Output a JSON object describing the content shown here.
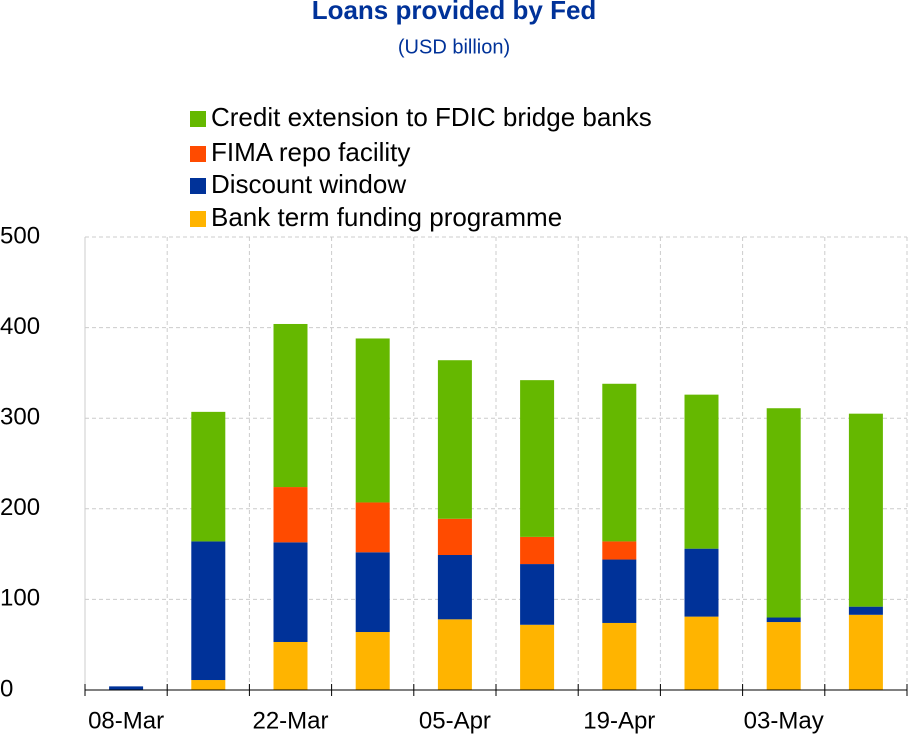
{
  "chart_data": {
    "type": "stacked_bar",
    "title": "Loans provided by Fed",
    "subtitle": "(USD billion)",
    "categories": [
      "08-Mar",
      null,
      "22-Mar",
      null,
      "05-Apr",
      null,
      "19-Apr",
      null,
      "03-May",
      null
    ],
    "series": [
      {
        "name": "Bank term funding programme",
        "color": "#ffb400",
        "values": [
          0,
          11,
          53,
          64,
          78,
          72,
          74,
          81,
          75,
          83
        ]
      },
      {
        "name": "Discount window",
        "color": "#003299",
        "values": [
          4,
          153,
          110,
          88,
          71,
          67,
          70,
          75,
          5,
          9
        ]
      },
      {
        "name": "FIMA repo facility",
        "color": "#ff4b00",
        "values": [
          0,
          0,
          61,
          55,
          40,
          30,
          20,
          0,
          0,
          0
        ]
      },
      {
        "name": "Credit extension to FDIC bridge banks",
        "color": "#65b800",
        "values": [
          0,
          143,
          180,
          181,
          175,
          173,
          174,
          170,
          231,
          213
        ]
      }
    ],
    "ylim": [
      0,
      500
    ],
    "yticks": [
      0,
      100,
      200,
      300,
      400,
      500
    ],
    "grid": true
  }
}
